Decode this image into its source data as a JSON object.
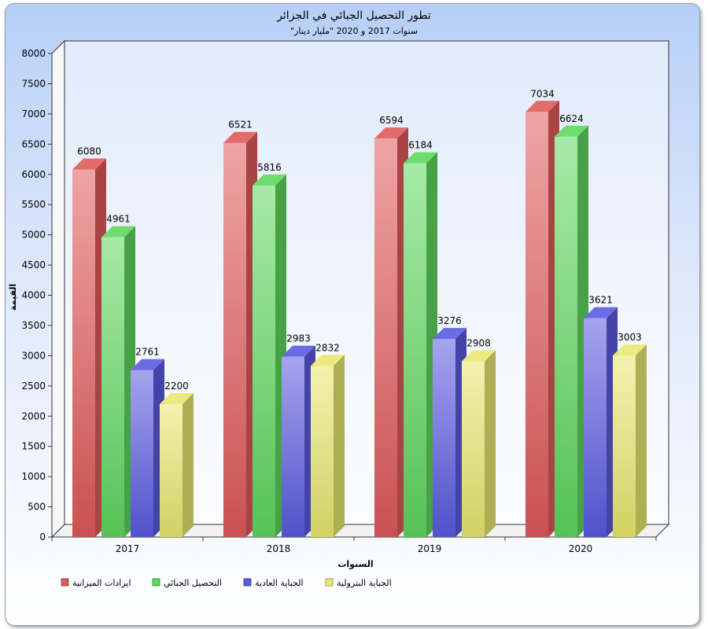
{
  "chart_data": {
    "type": "bar",
    "title": "تطور التحصيل الجبائي في الجزائر",
    "subtitle": "\"سنوات 2017 و 2020 \"مليار دينار",
    "xlabel": "السنوات",
    "ylabel": "القيمة",
    "categories": [
      "2017",
      "2018",
      "2019",
      "2020"
    ],
    "ylim": [
      0,
      8000
    ],
    "ytick_step": 500,
    "grid": false,
    "legend_position": "bottom",
    "series": [
      {
        "name": "ايرادات الميزانية",
        "values": [
          6080,
          6521,
          6594,
          7034
        ],
        "color": "#e05a5a"
      },
      {
        "name": "التحصيل الجبائي",
        "values": [
          4961,
          5816,
          6184,
          6624
        ],
        "color": "#5fd85f"
      },
      {
        "name": "الجباية العادية",
        "values": [
          2761,
          2983,
          3276,
          3621
        ],
        "color": "#5a5ae0"
      },
      {
        "name": "الجباية البترولية",
        "values": [
          2200,
          2832,
          2908,
          3003
        ],
        "color": "#e8e870"
      }
    ]
  }
}
